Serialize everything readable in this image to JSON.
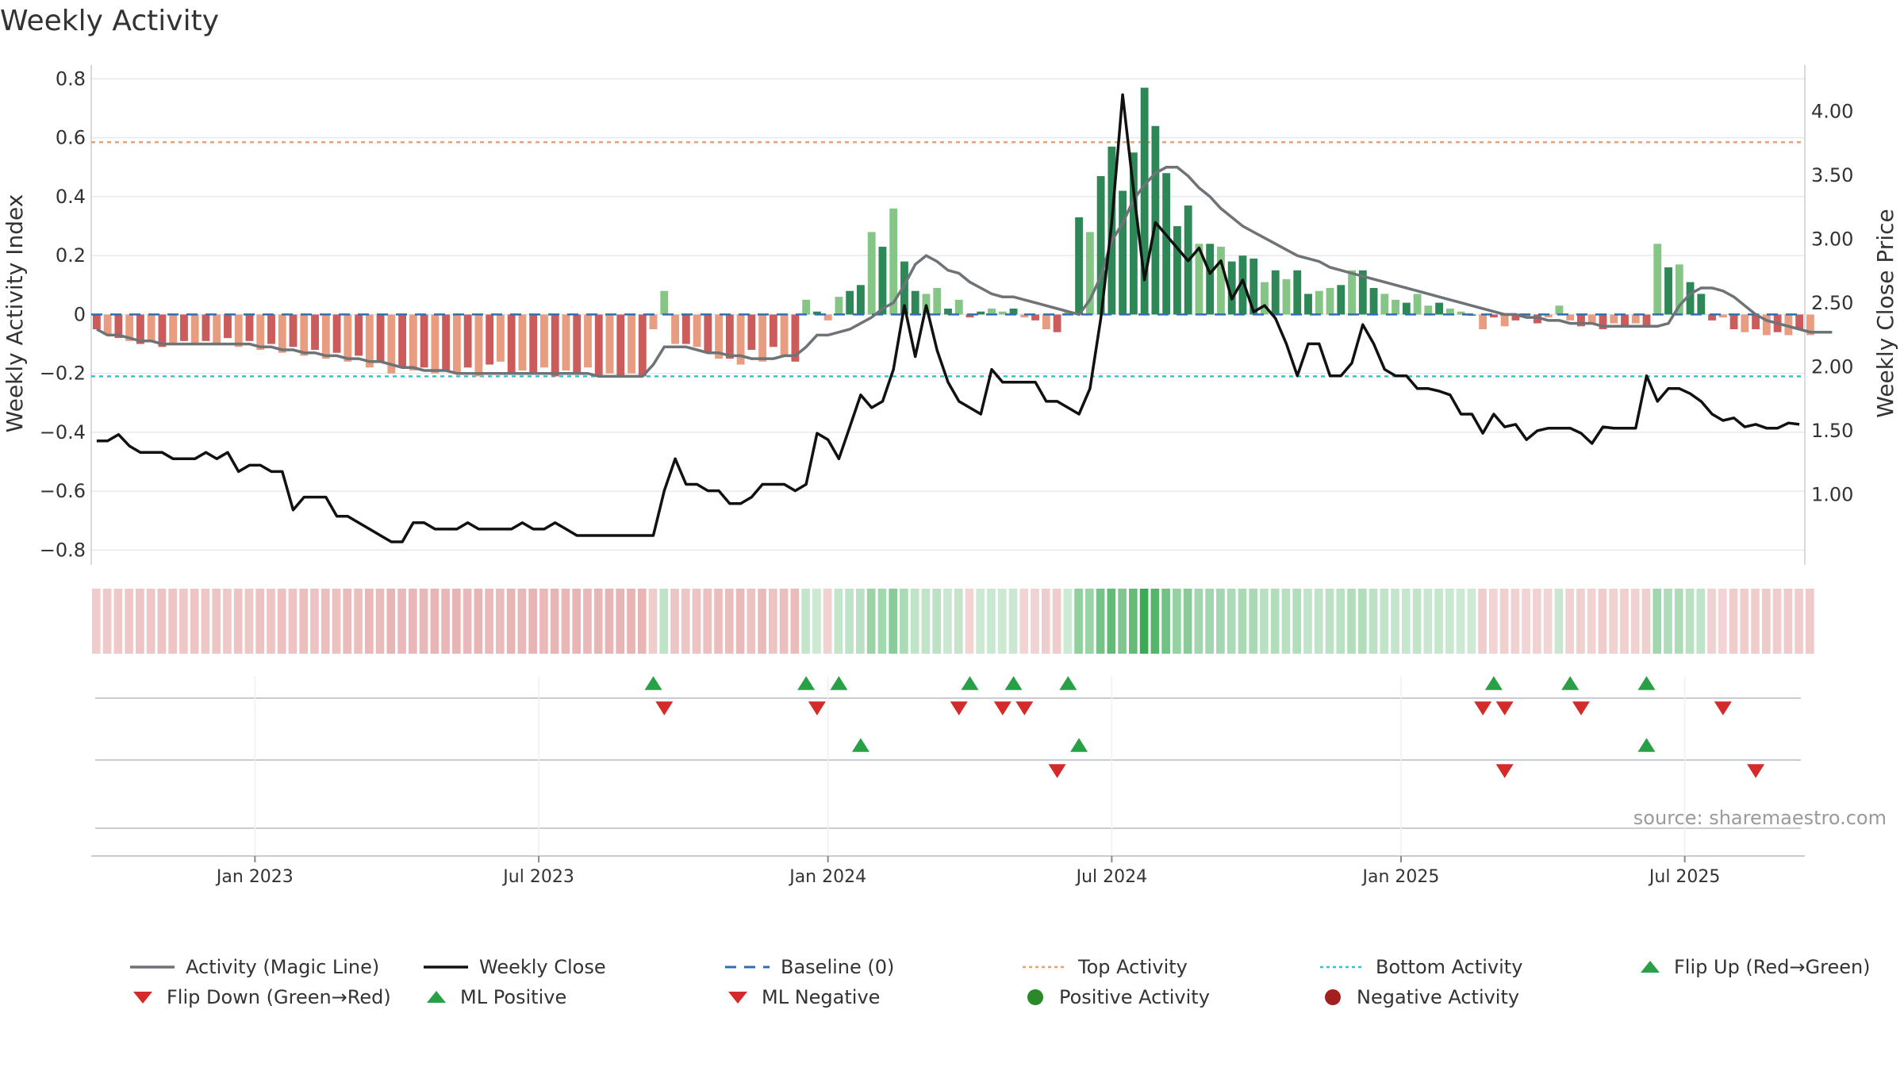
{
  "chart_data": {
    "type": "bar",
    "title": "Weekly Activity",
    "ylabel_left": "Weekly Activity Index",
    "ylabel_right": "Weekly Close Price",
    "ylim_left": [
      -0.85,
      0.82
    ],
    "ylim_right": [
      0.45,
      4.3
    ],
    "yticks_left": [
      0.8,
      0.6,
      0.4,
      0.2,
      0,
      -0.2,
      -0.4,
      -0.6,
      -0.8
    ],
    "yticks_left_labels": [
      "0.8",
      "0.6",
      "0.4",
      "0.2",
      "0",
      "−0.2",
      "−0.4",
      "−0.6",
      "−0.8"
    ],
    "yticks_right": [
      4.0,
      3.5,
      3.0,
      2.5,
      2.0,
      1.5,
      1.0
    ],
    "yticks_right_labels": [
      "4.00",
      "3.50",
      "3.00",
      "2.50",
      "2.00",
      "1.50",
      "1.00"
    ],
    "x_domain_weeks": [
      0,
      157
    ],
    "x_ticks": [
      {
        "label": "Jan 2023",
        "week": 15
      },
      {
        "label": "Jul 2023",
        "week": 41
      },
      {
        "label": "Jan 2024",
        "week": 67.5
      },
      {
        "label": "Jul 2024",
        "week": 93.5
      },
      {
        "label": "Jan 2025",
        "week": 120
      },
      {
        "label": "Jul 2025",
        "week": 146
      }
    ],
    "top_activity": 0.585,
    "bottom_activity": -0.21,
    "baseline": 0,
    "activity_bars": [
      -0.05,
      -0.07,
      -0.08,
      -0.09,
      -0.1,
      -0.09,
      -0.11,
      -0.1,
      -0.09,
      -0.1,
      -0.09,
      -0.1,
      -0.08,
      -0.11,
      -0.09,
      -0.12,
      -0.1,
      -0.13,
      -0.11,
      -0.14,
      -0.12,
      -0.15,
      -0.13,
      -0.16,
      -0.14,
      -0.18,
      -0.16,
      -0.2,
      -0.18,
      -0.19,
      -0.18,
      -0.2,
      -0.19,
      -0.2,
      -0.18,
      -0.21,
      -0.17,
      -0.16,
      -0.2,
      -0.19,
      -0.2,
      -0.18,
      -0.21,
      -0.19,
      -0.2,
      -0.18,
      -0.21,
      -0.2,
      -0.21,
      -0.2,
      -0.21,
      -0.05,
      0.08,
      -0.1,
      -0.1,
      -0.11,
      -0.13,
      -0.15,
      -0.15,
      -0.17,
      -0.12,
      -0.16,
      -0.11,
      -0.14,
      -0.16,
      0.05,
      0.01,
      -0.02,
      0.06,
      0.08,
      0.1,
      0.28,
      0.23,
      0.36,
      0.18,
      0.08,
      0.07,
      0.09,
      0.02,
      0.05,
      -0.01,
      0.01,
      0.02,
      0.01,
      0.02,
      -0.01,
      -0.02,
      -0.05,
      -0.06,
      0.01,
      0.33,
      0.28,
      0.47,
      0.57,
      0.42,
      0.55,
      0.77,
      0.64,
      0.48,
      0.3,
      0.37,
      0.24,
      0.24,
      0.23,
      0.18,
      0.2,
      0.19,
      0.11,
      0.15,
      0.12,
      0.15,
      0.07,
      0.08,
      0.09,
      0.1,
      0.15,
      0.15,
      0.09,
      0.07,
      0.05,
      0.04,
      0.07,
      0.03,
      0.04,
      0.02,
      0.01,
      0.0,
      -0.05,
      -0.01,
      -0.04,
      -0.02,
      -0.01,
      -0.03,
      -0.01,
      0.03,
      -0.02,
      -0.04,
      -0.03,
      -0.05,
      -0.03,
      -0.04,
      -0.03,
      -0.04,
      0.24,
      0.16,
      0.17,
      0.11,
      0.07,
      -0.02,
      -0.01,
      -0.05,
      -0.06,
      -0.05,
      -0.07,
      -0.06,
      -0.07,
      -0.05,
      -0.07
    ],
    "magic_line": [
      -0.05,
      -0.07,
      -0.07,
      -0.08,
      -0.09,
      -0.09,
      -0.1,
      -0.1,
      -0.1,
      -0.1,
      -0.1,
      -0.1,
      -0.1,
      -0.1,
      -0.1,
      -0.11,
      -0.11,
      -0.12,
      -0.12,
      -0.13,
      -0.13,
      -0.14,
      -0.14,
      -0.15,
      -0.15,
      -0.16,
      -0.16,
      -0.17,
      -0.18,
      -0.18,
      -0.19,
      -0.19,
      -0.19,
      -0.2,
      -0.2,
      -0.2,
      -0.2,
      -0.2,
      -0.2,
      -0.2,
      -0.2,
      -0.2,
      -0.2,
      -0.2,
      -0.2,
      -0.2,
      -0.21,
      -0.21,
      -0.21,
      -0.21,
      -0.21,
      -0.17,
      -0.11,
      -0.11,
      -0.11,
      -0.12,
      -0.13,
      -0.13,
      -0.14,
      -0.14,
      -0.15,
      -0.15,
      -0.15,
      -0.14,
      -0.14,
      -0.11,
      -0.07,
      -0.07,
      -0.06,
      -0.05,
      -0.03,
      -0.01,
      0.02,
      0.04,
      0.1,
      0.17,
      0.2,
      0.18,
      0.15,
      0.14,
      0.11,
      0.09,
      0.07,
      0.06,
      0.06,
      0.05,
      0.04,
      0.03,
      0.02,
      0.01,
      0.0,
      0.05,
      0.13,
      0.25,
      0.31,
      0.39,
      0.44,
      0.48,
      0.5,
      0.5,
      0.47,
      0.43,
      0.4,
      0.36,
      0.33,
      0.3,
      0.28,
      0.26,
      0.24,
      0.22,
      0.2,
      0.19,
      0.18,
      0.16,
      0.15,
      0.14,
      0.13,
      0.12,
      0.11,
      0.1,
      0.09,
      0.08,
      0.07,
      0.06,
      0.05,
      0.04,
      0.03,
      0.02,
      0.01,
      0.0,
      0.0,
      -0.01,
      -0.01,
      -0.02,
      -0.02,
      -0.03,
      -0.03,
      -0.03,
      -0.04,
      -0.04,
      -0.04,
      -0.04,
      -0.04,
      -0.04,
      -0.03,
      0.03,
      0.07,
      0.09,
      0.09,
      0.08,
      0.06,
      0.03,
      0.0,
      -0.02,
      -0.03,
      -0.04,
      -0.05,
      -0.06,
      -0.06,
      -0.06
    ],
    "weekly_close": [
      1.42,
      1.42,
      1.47,
      1.38,
      1.33,
      1.33,
      1.33,
      1.28,
      1.28,
      1.28,
      1.33,
      1.28,
      1.33,
      1.18,
      1.23,
      1.23,
      1.18,
      1.18,
      0.88,
      0.98,
      0.98,
      0.98,
      0.83,
      0.83,
      0.78,
      0.73,
      0.68,
      0.63,
      0.63,
      0.78,
      0.78,
      0.73,
      0.73,
      0.73,
      0.78,
      0.73,
      0.73,
      0.73,
      0.73,
      0.78,
      0.73,
      0.73,
      0.78,
      0.73,
      0.68,
      0.68,
      0.68,
      0.68,
      0.68,
      0.68,
      0.68,
      0.68,
      1.03,
      1.28,
      1.08,
      1.08,
      1.03,
      1.03,
      0.93,
      0.93,
      0.98,
      1.08,
      1.08,
      1.08,
      1.03,
      1.08,
      1.48,
      1.43,
      1.28,
      1.53,
      1.78,
      1.68,
      1.73,
      1.98,
      2.48,
      2.08,
      2.48,
      2.13,
      1.88,
      1.73,
      1.68,
      1.63,
      1.98,
      1.88,
      1.88,
      1.88,
      1.88,
      1.73,
      1.73,
      1.68,
      1.63,
      1.83,
      2.38,
      3.13,
      4.13,
      3.38,
      2.68,
      3.13,
      3.03,
      2.93,
      2.83,
      2.93,
      2.73,
      2.83,
      2.53,
      2.68,
      2.43,
      2.48,
      2.38,
      2.18,
      1.93,
      2.18,
      2.18,
      1.93,
      1.93,
      2.03,
      2.33,
      2.18,
      1.98,
      1.93,
      1.93,
      1.83,
      1.83,
      1.81,
      1.78,
      1.63,
      1.63,
      1.48,
      1.63,
      1.53,
      1.55,
      1.43,
      1.5,
      1.52,
      1.52,
      1.52,
      1.48,
      1.4,
      1.53,
      1.52,
      1.52,
      1.52,
      1.93,
      1.73,
      1.83,
      1.83,
      1.79,
      1.73,
      1.63,
      1.58,
      1.6,
      1.53,
      1.55,
      1.52,
      1.52,
      1.56,
      1.55
    ],
    "flip_up_weeks": [
      51,
      65,
      68,
      80,
      84,
      89,
      128,
      135,
      142
    ],
    "flip_down_weeks": [
      52,
      66,
      79,
      83,
      85,
      127,
      129,
      136,
      149
    ],
    "ml_positive_weeks": [
      70,
      90,
      142
    ],
    "ml_negative_weeks": [
      88,
      129,
      152
    ],
    "source_note": "source: sharemaestro.com",
    "legend": [
      {
        "label": "Activity (Magic Line)",
        "marker": "line",
        "color": "#6e7378"
      },
      {
        "label": "Weekly Close",
        "marker": "line",
        "color": "#111111"
      },
      {
        "label": "Baseline (0)",
        "marker": "dash",
        "color": "#2f6fb0"
      },
      {
        "label": "Top Activity",
        "marker": "dot-line",
        "color": "#e8a36e"
      },
      {
        "label": "Bottom Activity",
        "marker": "dot-line",
        "color": "#2fc6d8"
      },
      {
        "label": "Flip Up (Red→Green)",
        "marker": "triangle-up",
        "color": "#27a046"
      },
      {
        "label": "Flip Down (Green→Red)",
        "marker": "triangle-down",
        "color": "#d42a2a"
      },
      {
        "label": "ML Positive",
        "marker": "triangle-up",
        "color": "#27a046"
      },
      {
        "label": "ML Negative",
        "marker": "triangle-down",
        "color": "#d42a2a"
      },
      {
        "label": "Positive Activity",
        "marker": "circle",
        "color": "#2a8a2a"
      },
      {
        "label": "Negative Activity",
        "marker": "circle",
        "color": "#a42020"
      }
    ],
    "colors": {
      "pos_dark": "#2e8756",
      "pos_light": "#85c585",
      "neg_dark": "#cc5b5b",
      "neg_light": "#e89c80",
      "grid": "#e6e9ec",
      "axis": "#c9cdd2"
    }
  }
}
